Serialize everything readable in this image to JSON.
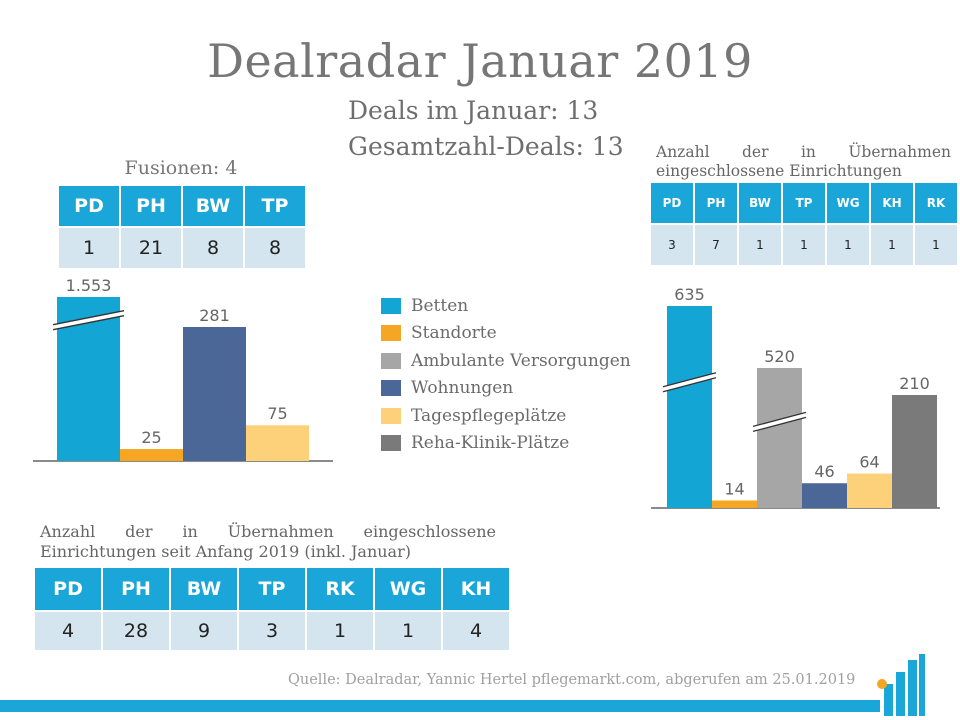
{
  "title": "Dealradar Januar 2019",
  "deals_januar": "Deals im Januar: 13",
  "gesamt_deals": "Gesamtzahl-Deals: 13",
  "fusionen": {
    "label": "Fusionen: 4",
    "headers": [
      "PD",
      "PH",
      "BW",
      "TP"
    ],
    "values": [
      "1",
      "21",
      "8",
      "8"
    ]
  },
  "uebernahmen": {
    "label": "Anzahl der in Übernahmen eingeschlossene Einrichtungen",
    "headers": [
      "PD",
      "PH",
      "BW",
      "TP",
      "WG",
      "KH",
      "RK"
    ],
    "values": [
      "3",
      "7",
      "1",
      "1",
      "1",
      "1",
      "1"
    ]
  },
  "gesamt": {
    "label": "Anzahl der in Übernahmen eingeschlossene Einrichtungen seit Anfang 2019 (inkl. Januar)",
    "headers": [
      "PD",
      "PH",
      "BW",
      "TP",
      "RK",
      "WG",
      "KH"
    ],
    "values": [
      "4",
      "28",
      "9",
      "3",
      "1",
      "1",
      "4"
    ]
  },
  "legend": [
    {
      "label": "Betten",
      "color": "#13a5d4"
    },
    {
      "label": "Standorte",
      "color": "#f5a623"
    },
    {
      "label": "Ambulante Versorgungen",
      "color": "#a6a6a6"
    },
    {
      "label": "Wohnungen",
      "color": "#4a6797"
    },
    {
      "label": "Tagespflegeplätze",
      "color": "#fdd17a"
    },
    {
      "label": "Reha-Klinik-Plätze",
      "color": "#7a7a7a"
    }
  ],
  "chart_data": [
    {
      "type": "bar",
      "categories": [
        "Betten",
        "Standorte",
        "Wohnungen",
        "Tagespflegeplätze"
      ],
      "values": [
        1553,
        25,
        281,
        75
      ],
      "value_labels": [
        "1.553",
        "25",
        "281",
        "75"
      ],
      "colors": [
        "#13a5d4",
        "#f5a623",
        "#4a6797",
        "#fdd17a"
      ],
      "axis_break_on": "Betten"
    },
    {
      "type": "bar",
      "categories": [
        "Betten",
        "Standorte",
        "Ambulante Versorgungen",
        "Wohnungen",
        "Tagespflegeplätze",
        "Reha-Klinik-Plätze"
      ],
      "values": [
        635,
        14,
        520,
        46,
        64,
        210
      ],
      "value_labels": [
        "635",
        "14",
        "520",
        "46",
        "64",
        "210"
      ],
      "colors": [
        "#13a5d4",
        "#f5a623",
        "#a6a6a6",
        "#4a6797",
        "#fdd17a",
        "#7a7a7a"
      ],
      "axis_break_on": [
        "Betten",
        "Ambulante Versorgungen"
      ]
    }
  ],
  "source": "Quelle: Dealradar, Yannic Hertel pflegemarkt.com, abgerufen am 25.01.2019"
}
